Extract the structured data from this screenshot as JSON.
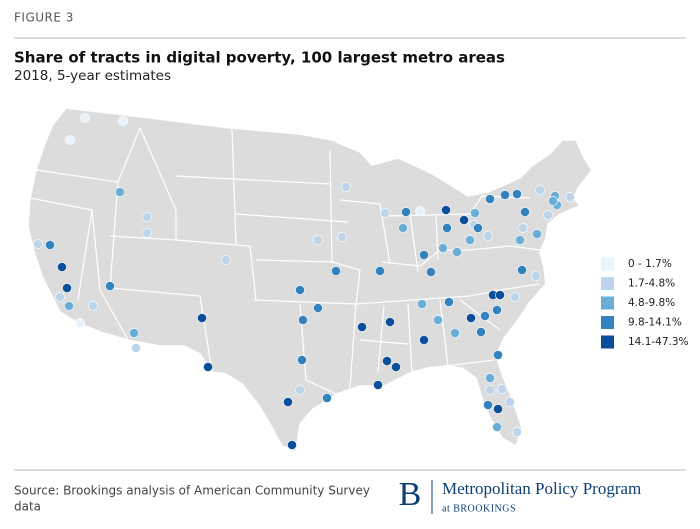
{
  "header": {
    "figure": "FIGURE 3",
    "title": "Share of tracts in digital poverty, 100 largest metro areas",
    "subtitle": "2018, 5-year estimates"
  },
  "legend": {
    "items": [
      {
        "label": "0 - 1.7%",
        "color": "#eaf2fb"
      },
      {
        "label": "1.7-4.8%",
        "color": "#bcd5ea"
      },
      {
        "label": "4.8-9.8%",
        "color": "#6aaed6"
      },
      {
        "label": "9.8-14.1%",
        "color": "#3182bd"
      },
      {
        "label": "14.1-47.3%",
        "color": "#0b4f9c"
      }
    ]
  },
  "footer": {
    "source": [
      "Source: Brookings analysis of American Community Survey",
      "data"
    ],
    "logo_letter": "B",
    "program": "Metropolitan Policy Program",
    "org": "at BROOKINGS"
  }
}
